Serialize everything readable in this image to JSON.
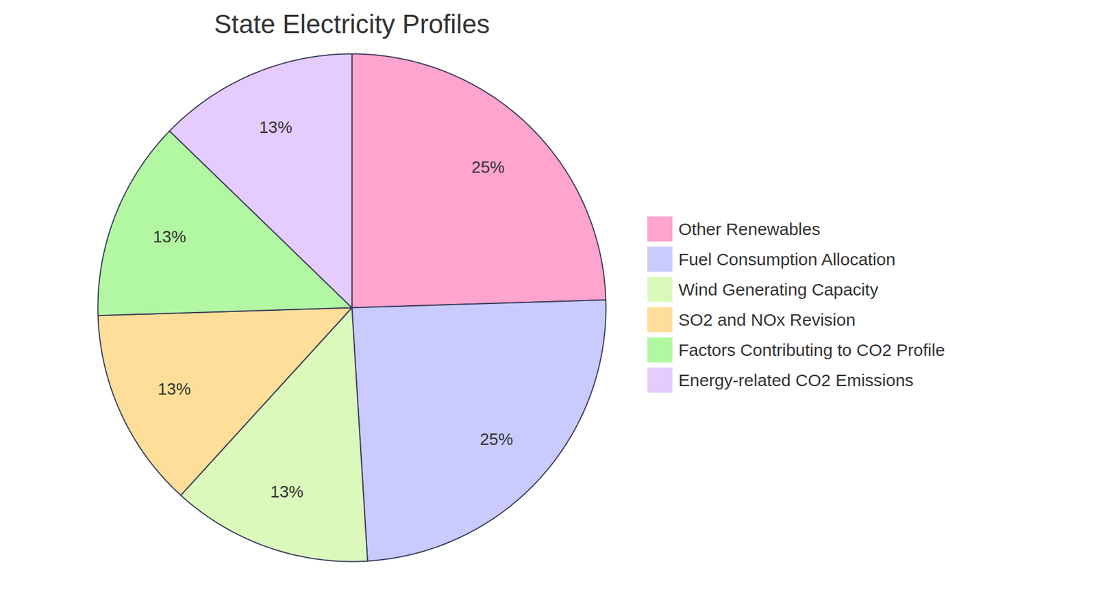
{
  "chart_data": {
    "type": "pie",
    "title": "State Electricity Profiles",
    "categories": [
      "Other Renewables",
      "Fuel Consumption Allocation",
      "Wind Generating Capacity",
      "SO2 and NOx Revision",
      "Factors Contributing to CO2 Profile",
      "Energy-related CO2 Emissions"
    ],
    "values": [
      25,
      25,
      13,
      13,
      13,
      13
    ],
    "value_labels": [
      "25%",
      "25%",
      "13%",
      "13%",
      "13%",
      "13%"
    ],
    "colors": [
      "#ffa3cf",
      "#c9cbff",
      "#dbf9bb",
      "#ffde99",
      "#b2f7a2",
      "#e5ccff"
    ],
    "data_labels": true,
    "legend": "right"
  }
}
